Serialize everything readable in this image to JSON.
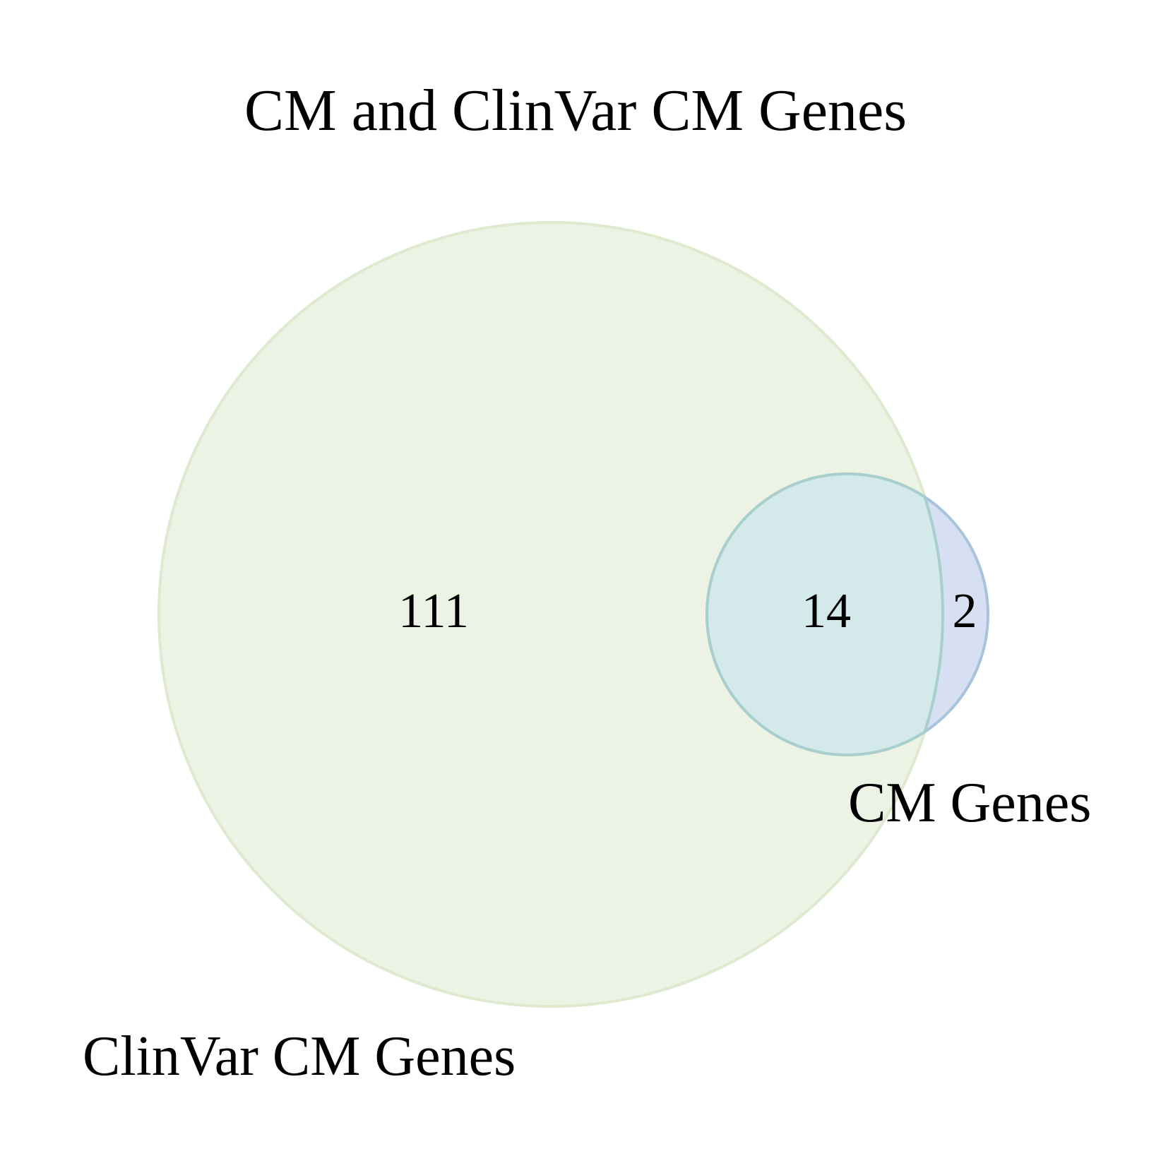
{
  "title": "CM and ClinVar CM Genes",
  "sets": [
    {
      "label": "ClinVar CM Genes",
      "fill": "#e4eed8",
      "stroke": "#dfe9cf"
    },
    {
      "label": "CM Genes",
      "fill": "#c9d6ee",
      "stroke": "#a9c3dc"
    }
  ],
  "overlap": {
    "fill": "#d4e9e9",
    "stroke": "#a9cfcd"
  },
  "regions": {
    "clinvar_only": "111",
    "both": "14",
    "cm_only": "2"
  }
}
